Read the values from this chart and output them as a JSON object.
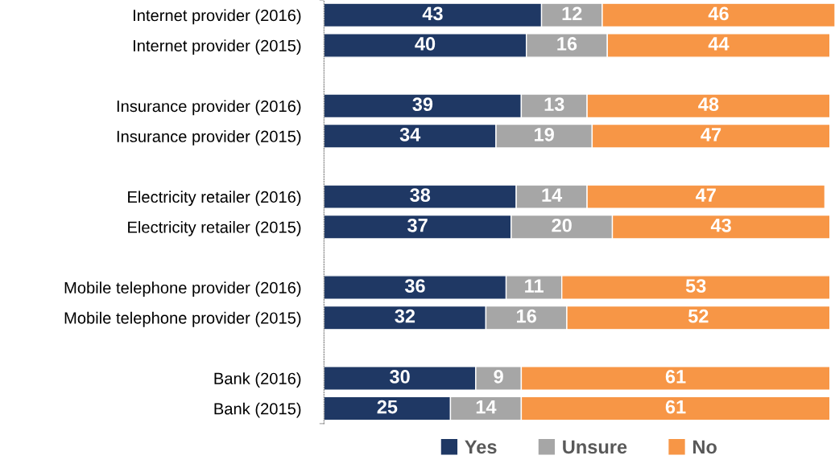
{
  "chart_data": {
    "type": "bar",
    "orientation": "horizontal",
    "stacked": true,
    "data_labels": true,
    "legend": "bottom",
    "grid": false,
    "categories": [
      "Internet provider (2016)",
      "Internet provider (2015)",
      null,
      "Insurance provider (2016)",
      "Insurance provider (2015)",
      null,
      "Electricity retailer (2016)",
      "Electricity retailer (2015)",
      null,
      "Mobile telephone provider (2016)",
      "Mobile telephone provider (2015)",
      null,
      "Bank (2016)",
      "Bank (2015)"
    ],
    "series": [
      {
        "name": "Yes",
        "color": "#1f3864",
        "values": [
          43,
          40,
          null,
          39,
          34,
          null,
          38,
          37,
          null,
          36,
          32,
          null,
          30,
          25
        ]
      },
      {
        "name": "Unsure",
        "color": "#a6a6a6",
        "values": [
          12,
          16,
          null,
          13,
          19,
          null,
          14,
          20,
          null,
          11,
          16,
          null,
          9,
          14
        ]
      },
      {
        "name": "No",
        "color": "#f79646",
        "values": [
          46,
          44,
          null,
          48,
          47,
          null,
          47,
          43,
          null,
          53,
          52,
          null,
          61,
          61
        ]
      }
    ]
  }
}
